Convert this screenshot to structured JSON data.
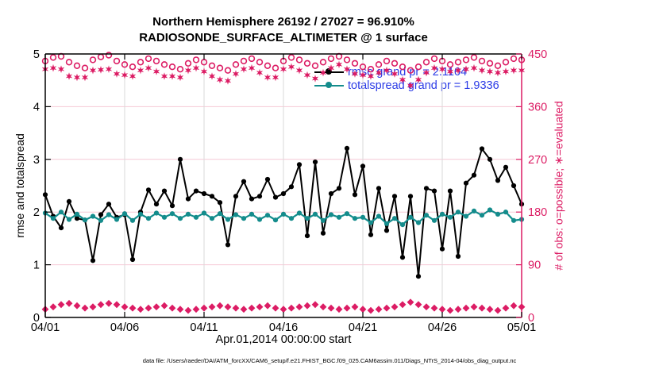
{
  "figure": {
    "title_line1": "Northern Hemisphere 26192 / 27027 = 96.910%",
    "title_line2": "RADIOSONDE_SURFACE_ALTIMETER @ 1 surface",
    "xlabel": "Apr.01,2014 00:00:00 start",
    "ylabel_left": "rmse and totalspread",
    "ylabel_right": "# of obs: o=possible; ∗=evaluated",
    "caption": "data file: /Users/raeder/DAI/ATM_forcXX/CAM6_setup/f.e21.FHIST_BGC.f09_025.CAM6assim.011/Diags_NTrS_2014-04/obs_diag_output.nc"
  },
  "legend": {
    "rmse_label": "rmse grand pr = 2.1164",
    "totalspread_label": "totalspread grand pr = 1.9336"
  },
  "colors": {
    "obs_pink": "#DC1C64",
    "totalspread_teal": "#148C8C",
    "rmse_black": "#000000",
    "legend_text_blue": "#2B3BE6",
    "grid_horizontal": "#F6C9D6",
    "grid_vertical": "#DADADA",
    "right_axis_pink": "#DC1C64"
  },
  "chart_data": {
    "type": "line",
    "title": "Northern Hemisphere 26192 / 27027 = 96.910% — RADIOSONDE_SURFACE_ALTIMETER @ 1 surface",
    "xlabel": "Apr.01,2014 00:00:00 start",
    "x_tick_labels": [
      "04/01",
      "04/06",
      "04/11",
      "04/16",
      "04/21",
      "04/26",
      "05/01"
    ],
    "points_per_day": 2,
    "n_points": 61,
    "grid": true,
    "legend_position": "top-right-inside",
    "rmse_grand_pr": 2.1164,
    "totalspread_grand_pr": 1.9336,
    "obs_evaluated_total": 26192,
    "obs_possible_total": 27027,
    "obs_evaluated_percent": 96.91,
    "left_axis": {
      "label": "rmse and totalspread",
      "range": [
        0,
        5
      ],
      "ticks": [
        0,
        1,
        2,
        3,
        4,
        5
      ]
    },
    "right_axis": {
      "label": "# of obs: o=possible; ∗=evaluated",
      "range": [
        0,
        450
      ],
      "ticks": [
        0,
        90,
        180,
        270,
        360,
        450
      ]
    },
    "series": [
      {
        "name": "rmse",
        "axis": "left",
        "color": "#000000",
        "marker": "filled-dot",
        "values": [
          2.33,
          1.92,
          1.7,
          2.2,
          1.88,
          1.85,
          1.08,
          1.95,
          2.15,
          1.9,
          1.95,
          1.1,
          2.0,
          2.42,
          2.15,
          2.4,
          2.12,
          3.0,
          2.25,
          2.4,
          2.35,
          2.3,
          2.18,
          1.38,
          2.3,
          2.58,
          2.25,
          2.3,
          2.62,
          2.28,
          2.35,
          2.48,
          2.9,
          1.55,
          2.95,
          1.6,
          2.35,
          2.45,
          3.21,
          2.33,
          2.87,
          1.57,
          2.45,
          1.65,
          2.3,
          1.14,
          2.3,
          0.78,
          2.45,
          2.4,
          1.3,
          2.4,
          1.16,
          2.55,
          2.7,
          3.2,
          3.0,
          2.6,
          2.85,
          2.5,
          2.15
        ]
      },
      {
        "name": "totalspread",
        "axis": "left",
        "color": "#148C8C",
        "marker": "filled-dot",
        "values": [
          1.98,
          1.88,
          2.0,
          1.86,
          1.96,
          1.85,
          1.92,
          1.84,
          1.95,
          1.86,
          1.97,
          1.84,
          1.96,
          1.88,
          1.98,
          1.9,
          1.97,
          1.88,
          1.96,
          1.9,
          1.98,
          1.88,
          1.97,
          1.86,
          1.95,
          1.88,
          1.96,
          1.86,
          1.94,
          1.85,
          1.96,
          1.88,
          1.98,
          1.88,
          1.96,
          1.84,
          1.95,
          1.9,
          1.97,
          1.88,
          1.9,
          1.8,
          1.92,
          1.78,
          1.88,
          1.76,
          1.9,
          1.8,
          1.94,
          1.84,
          1.96,
          1.9,
          2.0,
          1.92,
          2.02,
          1.94,
          2.04,
          1.96,
          2.0,
          1.84,
          1.86
        ]
      },
      {
        "name": "possible_obs",
        "axis": "right",
        "color": "#DC1C64",
        "marker": "open-circle",
        "values": [
          438,
          444,
          446,
          436,
          430,
          426,
          440,
          445,
          448,
          438,
          432,
          428,
          436,
          442,
          438,
          432,
          428,
          424,
          434,
          440,
          436,
          430,
          426,
          422,
          432,
          438,
          442,
          436,
          430,
          426,
          438,
          444,
          440,
          434,
          430,
          436,
          442,
          446,
          440,
          434,
          428,
          424,
          432,
          438,
          434,
          428,
          422,
          428,
          436,
          442,
          438,
          432,
          436,
          440,
          444,
          438,
          434,
          430,
          436,
          442,
          440
        ]
      },
      {
        "name": "evaluated_obs",
        "axis": "right",
        "color": "#DC1C64",
        "marker": "star",
        "values": [
          424,
          426,
          424,
          412,
          410,
          410,
          422,
          423,
          424,
          416,
          414,
          412,
          422,
          426,
          420,
          412,
          412,
          410,
          422,
          426,
          420,
          412,
          406,
          404,
          416,
          424,
          426,
          418,
          410,
          410,
          424,
          428,
          422,
          414,
          408,
          418,
          426,
          432,
          424,
          416,
          414,
          412,
          418,
          422,
          416,
          406,
          396,
          406,
          418,
          426,
          424,
          420,
          422,
          424,
          426,
          422,
          420,
          418,
          420,
          422,
          422
        ]
      },
      {
        "name": "rejected_obs",
        "axis": "right",
        "color": "#DC1C64",
        "marker": "filled-diamond",
        "values": [
          14,
          18,
          22,
          24,
          20,
          16,
          18,
          22,
          24,
          22,
          18,
          16,
          14,
          16,
          18,
          20,
          16,
          14,
          12,
          14,
          16,
          18,
          20,
          18,
          16,
          14,
          16,
          18,
          20,
          16,
          14,
          16,
          18,
          20,
          22,
          18,
          16,
          14,
          16,
          18,
          14,
          12,
          14,
          16,
          18,
          22,
          26,
          22,
          18,
          16,
          14,
          12,
          14,
          16,
          18,
          16,
          14,
          12,
          16,
          20,
          18
        ]
      }
    ]
  }
}
